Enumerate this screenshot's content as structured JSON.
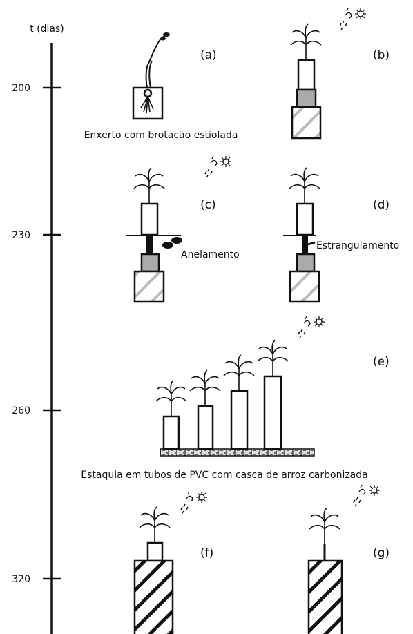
{
  "timeline": {
    "label": "t (dias)",
    "ticks": [
      200,
      230,
      260,
      320
    ]
  },
  "panels": [
    {
      "label": "(a)",
      "caption": "Enxerto com brotação estiolada"
    },
    {
      "label": "(b)"
    },
    {
      "label": "(c)",
      "caption": "Anelamento"
    },
    {
      "label": "(d)",
      "caption": "Estrangulamento"
    },
    {
      "label": "(e)",
      "caption": "Estaquia em tubos de PVC com casca de arroz carbonizada"
    },
    {
      "label": "(f)"
    },
    {
      "label": "(g)"
    }
  ]
}
